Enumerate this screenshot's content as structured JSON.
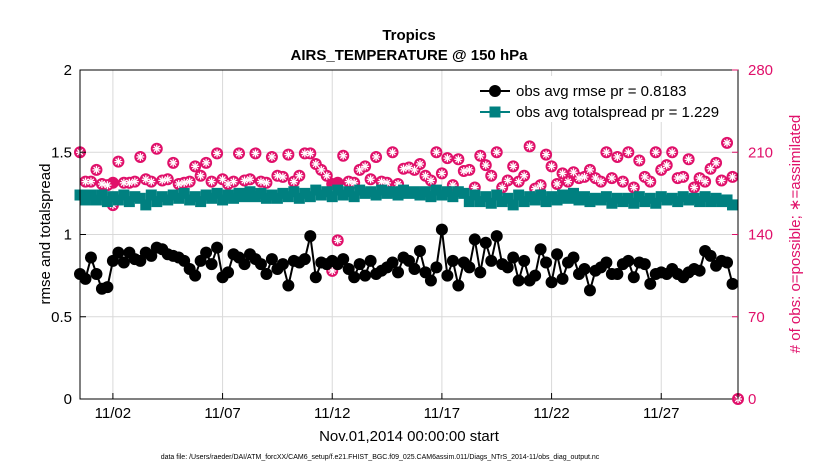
{
  "chart_data": {
    "type": "line",
    "title": "Tropics",
    "subtitle": "AIRS_TEMPERATURE @ 150 hPa",
    "xlabel": "Nov.01,2014 00:00:00 start",
    "ylabel_left": "rmse and totalspread",
    "ylabel_right": "# of obs: o=possible; ∗=assimilated",
    "footnote": "data file: /Users/raeder/DAI/ATM_forcXX/CAM6_setup/f.e21.FHIST_BGC.f09_025.CAM6assim.011/Diags_NTrS_2014-11/obs_diag_output.nc",
    "x_tick_labels": [
      "11/02",
      "11/07",
      "11/12",
      "11/17",
      "11/22",
      "11/27"
    ],
    "x_tick_days": [
      2,
      7,
      12,
      17,
      22,
      27
    ],
    "xlim": [
      0.5,
      30.5
    ],
    "ylim_left": [
      0,
      2
    ],
    "yticks_left": [
      "0",
      "0.5",
      "1",
      "1.5",
      "2"
    ],
    "ylim_right": [
      0,
      280
    ],
    "yticks_right": [
      "0",
      "70",
      "140",
      "210",
      "280"
    ],
    "colors": {
      "rmse": "#000000",
      "spread": "#008080",
      "obs": "#e0106a"
    },
    "series": [
      {
        "name": "obs avg rmse pr = 0.8183",
        "axis": "left",
        "marker": "circle",
        "x": [
          0.5,
          0.75,
          1,
          1.25,
          1.5,
          1.75,
          2,
          2.25,
          2.5,
          2.75,
          3,
          3.25,
          3.5,
          3.75,
          4,
          4.25,
          4.5,
          4.75,
          5,
          5.25,
          5.5,
          5.75,
          6,
          6.25,
          6.5,
          6.75,
          7,
          7.25,
          7.5,
          7.75,
          8,
          8.25,
          8.5,
          8.75,
          9,
          9.25,
          9.5,
          9.75,
          10,
          10.25,
          10.5,
          10.75,
          11,
          11.25,
          11.5,
          11.75,
          12,
          12.25,
          12.5,
          12.75,
          13,
          13.25,
          13.5,
          13.75,
          14,
          14.25,
          14.5,
          14.75,
          15,
          15.25,
          15.5,
          15.75,
          16,
          16.25,
          16.5,
          16.75,
          17,
          17.25,
          17.5,
          17.75,
          18,
          18.25,
          18.5,
          18.75,
          19,
          19.25,
          19.5,
          19.75,
          20,
          20.25,
          20.5,
          20.75,
          21,
          21.25,
          21.5,
          21.75,
          22,
          22.25,
          22.5,
          22.75,
          23,
          23.25,
          23.5,
          23.75,
          24,
          24.25,
          24.5,
          24.75,
          25,
          25.25,
          25.5,
          25.75,
          26,
          26.25,
          26.5,
          26.75,
          27,
          27.25,
          27.5,
          27.75,
          28,
          28.25,
          28.5,
          28.75,
          29,
          29.25,
          29.5,
          29.75,
          30,
          30.25
        ],
        "y": [
          0.76,
          0.73,
          0.86,
          0.76,
          0.67,
          0.68,
          0.84,
          0.89,
          0.83,
          0.89,
          0.85,
          0.84,
          0.89,
          0.87,
          0.92,
          0.91,
          0.88,
          0.87,
          0.86,
          0.84,
          0.79,
          0.75,
          0.84,
          0.89,
          0.82,
          0.92,
          0.74,
          0.77,
          0.88,
          0.86,
          0.82,
          0.88,
          0.85,
          0.82,
          0.76,
          0.85,
          0.79,
          0.82,
          0.69,
          0.84,
          0.83,
          0.85,
          0.99,
          0.74,
          0.83,
          0.82,
          0.84,
          0.82,
          0.85,
          0.79,
          0.74,
          0.82,
          0.75,
          0.84,
          0.76,
          0.78,
          0.8,
          0.83,
          0.77,
          0.86,
          0.84,
          0.79,
          0.9,
          0.77,
          0.72,
          0.8,
          1.03,
          0.75,
          0.84,
          0.69,
          0.83,
          0.8,
          0.97,
          0.77,
          0.95,
          0.84,
          0.99,
          0.82,
          0.8,
          0.86,
          0.72,
          0.84,
          0.72,
          0.75,
          0.91,
          0.83,
          0.71,
          0.88,
          0.73,
          0.83,
          0.86,
          0.76,
          0.79,
          0.66,
          0.78,
          0.8,
          0.83,
          0.76,
          0.76,
          0.82,
          0.84,
          0.74,
          0.83,
          0.82,
          0.7,
          0.76,
          0.77,
          0.76,
          0.79,
          0.76,
          0.74,
          0.77,
          0.79,
          0.78,
          0.9,
          0.87,
          0.81,
          0.84,
          0.83,
          0.7
        ]
      },
      {
        "name": "obs avg totalspread pr = 1.229",
        "axis": "left",
        "marker": "square",
        "x": [
          0.5,
          0.75,
          1,
          1.25,
          1.5,
          1.75,
          2,
          2.25,
          2.5,
          2.75,
          3,
          3.25,
          3.5,
          3.75,
          4,
          4.25,
          4.5,
          4.75,
          5,
          5.25,
          5.5,
          5.75,
          6,
          6.25,
          6.5,
          6.75,
          7,
          7.25,
          7.5,
          7.75,
          8,
          8.25,
          8.5,
          8.75,
          9,
          9.25,
          9.5,
          9.75,
          10,
          10.25,
          10.5,
          10.75,
          11,
          11.25,
          11.5,
          11.75,
          12,
          12.25,
          12.5,
          12.75,
          13,
          13.25,
          13.5,
          13.75,
          14,
          14.25,
          14.5,
          14.75,
          15,
          15.25,
          15.5,
          15.75,
          16,
          16.25,
          16.5,
          16.75,
          17,
          17.25,
          17.5,
          17.75,
          18,
          18.25,
          18.5,
          18.75,
          19,
          19.25,
          19.5,
          19.75,
          20,
          20.25,
          20.5,
          20.75,
          21,
          21.25,
          21.5,
          21.75,
          22,
          22.25,
          22.5,
          22.75,
          23,
          23.25,
          23.5,
          23.75,
          24,
          24.25,
          24.5,
          24.75,
          25,
          25.25,
          25.5,
          25.75,
          26,
          26.25,
          26.5,
          26.75,
          27,
          27.25,
          27.5,
          27.75,
          28,
          28.25,
          28.5,
          28.75,
          29,
          29.25,
          29.5,
          29.75,
          30,
          30.25
        ],
        "y": [
          1.24,
          1.21,
          1.24,
          1.21,
          1.24,
          1.2,
          1.23,
          1.21,
          1.24,
          1.2,
          1.23,
          1.22,
          1.18,
          1.24,
          1.2,
          1.23,
          1.21,
          1.24,
          1.22,
          1.25,
          1.21,
          1.23,
          1.2,
          1.24,
          1.22,
          1.25,
          1.21,
          1.24,
          1.22,
          1.25,
          1.23,
          1.26,
          1.23,
          1.25,
          1.22,
          1.24,
          1.22,
          1.25,
          1.23,
          1.26,
          1.22,
          1.25,
          1.23,
          1.27,
          1.24,
          1.26,
          1.23,
          1.27,
          1.24,
          1.26,
          1.23,
          1.27,
          1.25,
          1.26,
          1.24,
          1.27,
          1.25,
          1.26,
          1.24,
          1.27,
          1.25,
          1.26,
          1.24,
          1.26,
          1.23,
          1.27,
          1.24,
          1.26,
          1.23,
          1.26,
          1.25,
          1.2,
          1.24,
          1.2,
          1.23,
          1.19,
          1.24,
          1.2,
          1.22,
          1.18,
          1.24,
          1.2,
          1.23,
          1.21,
          1.24,
          1.2,
          1.23,
          1.21,
          1.24,
          1.22,
          1.25,
          1.21,
          1.23,
          1.2,
          1.22,
          1.21,
          1.23,
          1.19,
          1.22,
          1.2,
          1.22,
          1.19,
          1.23,
          1.2,
          1.22,
          1.19,
          1.23,
          1.21,
          1.22,
          1.2,
          1.23,
          1.21,
          1.22,
          1.2,
          1.23,
          1.2,
          1.22,
          1.2,
          1.21,
          1.18
        ]
      },
      {
        "name": "obs possible",
        "axis": "right",
        "marker": "o",
        "x": [
          0.5,
          0.75,
          1,
          1.25,
          1.5,
          1.75,
          2,
          2.25,
          2.5,
          2.75,
          3,
          3.25,
          3.5,
          3.75,
          4,
          4.25,
          4.5,
          4.75,
          5,
          5.25,
          5.5,
          5.75,
          6,
          6.25,
          6.5,
          6.75,
          7,
          7.25,
          7.5,
          7.75,
          8,
          8.25,
          8.5,
          8.75,
          9,
          9.25,
          9.5,
          9.75,
          10,
          10.25,
          10.5,
          10.75,
          11,
          11.25,
          11.5,
          11.75,
          12,
          12.25,
          12.5,
          12.75,
          13,
          13.25,
          13.5,
          13.75,
          14,
          14.25,
          14.5,
          14.75,
          15,
          15.25,
          15.5,
          15.75,
          16,
          16.25,
          16.5,
          16.75,
          17,
          17.25,
          17.5,
          17.75,
          18,
          18.25,
          18.5,
          18.75,
          19,
          19.25,
          19.5,
          19.75,
          20,
          20.25,
          20.5,
          20.75,
          21,
          21.25,
          21.5,
          21.75,
          22,
          22.25,
          22.5,
          22.75,
          23,
          23.25,
          23.5,
          23.75,
          24,
          24.25,
          24.5,
          24.75,
          25,
          25.25,
          25.5,
          25.75,
          26,
          26.25,
          26.5,
          26.75,
          27,
          27.25,
          27.5,
          27.75,
          28,
          28.25,
          28.5,
          28.75,
          29,
          29.25,
          29.5,
          29.75,
          30,
          30.25
        ],
        "y": [
          210,
          185,
          185,
          195,
          183,
          182,
          184,
          202,
          184,
          184,
          185,
          206,
          187,
          185,
          213,
          186,
          187,
          201,
          183,
          184,
          185,
          198,
          190,
          201,
          185,
          209,
          187,
          183,
          185,
          209,
          186,
          187,
          209,
          185,
          184,
          206,
          190,
          189,
          208,
          185,
          190,
          209,
          209,
          200,
          195,
          190,
          183,
          184,
          207,
          185,
          184,
          195,
          198,
          187,
          206,
          185,
          184,
          210,
          183,
          196,
          197,
          195,
          200,
          190,
          186,
          210,
          192,
          205,
          182,
          204,
          194,
          195,
          180,
          207,
          199,
          190,
          210,
          180,
          186,
          198,
          185,
          190,
          215,
          179,
          182,
          208,
          198,
          183,
          192,
          185,
          193,
          188,
          189,
          195,
          188,
          185,
          210,
          188,
          206,
          185,
          210,
          180,
          203,
          189,
          185,
          210,
          195,
          199,
          210,
          188,
          189,
          204,
          180,
          188,
          185,
          196,
          201,
          186,
          218,
          189
        ]
      },
      {
        "name": "obs assimilated",
        "axis": "right",
        "marker": "asterisk",
        "x": [
          0.5,
          0.75,
          1,
          1.25,
          1.5,
          1.75,
          2,
          2.25,
          2.5,
          2.75,
          3,
          3.25,
          3.5,
          3.75,
          4,
          4.25,
          4.5,
          4.75,
          5,
          5.25,
          5.5,
          5.75,
          6,
          6.25,
          6.5,
          6.75,
          7,
          7.25,
          7.5,
          7.75,
          8,
          8.25,
          8.5,
          8.75,
          9,
          9.25,
          9.5,
          9.75,
          10,
          10.25,
          10.5,
          10.75,
          11,
          11.25,
          11.5,
          11.75,
          12,
          12.25,
          12.5,
          12.75,
          13,
          13.25,
          13.5,
          13.75,
          14,
          14.25,
          14.5,
          14.75,
          15,
          15.25,
          15.5,
          15.75,
          16,
          16.25,
          16.5,
          16.75,
          17,
          17.25,
          17.5,
          17.75,
          18,
          18.25,
          18.5,
          18.75,
          19,
          19.25,
          19.5,
          19.75,
          20,
          20.25,
          20.5,
          20.75,
          21,
          21.25,
          21.5,
          21.75,
          22,
          22.25,
          22.5,
          22.75,
          23,
          23.25,
          23.5,
          23.75,
          24,
          24.25,
          24.5,
          24.75,
          25,
          25.25,
          25.5,
          25.75,
          26,
          26.25,
          26.5,
          26.75,
          27,
          27.25,
          27.5,
          27.75,
          28,
          28.25,
          28.5,
          28.75,
          29,
          29.25,
          29.5,
          29.75,
          30,
          30.25
        ],
        "y": [
          210,
          185,
          185,
          195,
          183,
          182,
          165,
          202,
          184,
          184,
          185,
          206,
          187,
          185,
          213,
          186,
          187,
          201,
          183,
          184,
          185,
          198,
          190,
          201,
          185,
          209,
          187,
          183,
          185,
          209,
          186,
          187,
          209,
          185,
          184,
          206,
          190,
          189,
          208,
          185,
          190,
          209,
          209,
          200,
          195,
          190,
          109,
          135,
          207,
          185,
          184,
          195,
          198,
          187,
          206,
          185,
          184,
          210,
          183,
          196,
          197,
          195,
          200,
          190,
          186,
          210,
          192,
          205,
          182,
          204,
          194,
          195,
          180,
          207,
          199,
          190,
          210,
          180,
          186,
          198,
          185,
          190,
          215,
          179,
          182,
          208,
          198,
          183,
          192,
          185,
          193,
          188,
          189,
          195,
          188,
          185,
          210,
          188,
          206,
          185,
          210,
          180,
          203,
          189,
          185,
          210,
          195,
          199,
          210,
          188,
          189,
          204,
          180,
          188,
          185,
          196,
          201,
          186,
          218,
          189
        ]
      }
    ],
    "extra_points": [
      {
        "x": 30.5,
        "y_right": 0,
        "marker": "asterisk-in-circle"
      }
    ],
    "legend": "top-right",
    "grid": true
  }
}
